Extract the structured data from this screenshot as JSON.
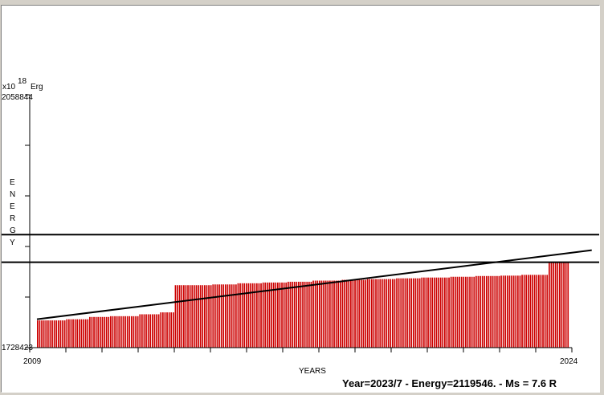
{
  "chart_data": {
    "type": "bar",
    "ylabel": "ENERGY",
    "y_unit": "x10",
    "y_unit_exponent": "18",
    "y_unit_suffix": "Erg",
    "xlabel": "YEARS",
    "x_start_label": "2009",
    "x_end_label": "2024",
    "xlim": [
      2009.0,
      2024.0
    ],
    "ylim": [
      1728423,
      2058844
    ],
    "ymax_label": "2058844",
    "ymin_label": "1728423",
    "bar_color": "#cc0000",
    "line_color": "#000000",
    "steps": [
      [
        2009.2,
        1764000
      ],
      [
        2010.0,
        1765500
      ],
      [
        2010.6,
        1768500
      ],
      [
        2011.2,
        1769500
      ],
      [
        2012.0,
        1772000
      ],
      [
        2012.6,
        1774500
      ],
      [
        2013.0,
        1810000
      ],
      [
        2014.0,
        1811000
      ],
      [
        2014.7,
        1812500
      ],
      [
        2015.4,
        1813500
      ],
      [
        2016.1,
        1814500
      ],
      [
        2016.8,
        1816000
      ],
      [
        2017.6,
        1817000
      ],
      [
        2018.3,
        1818000
      ],
      [
        2019.1,
        1819000
      ],
      [
        2019.8,
        1820000
      ],
      [
        2020.6,
        1821000
      ],
      [
        2021.3,
        1822000
      ],
      [
        2022.0,
        1822500
      ],
      [
        2022.6,
        1823500
      ],
      [
        2023.35,
        1840000
      ],
      [
        2023.92,
        1840000
      ]
    ],
    "trend_line": {
      "start": [
        2009.2,
        1765500
      ],
      "end": [
        2023.92,
        1852000
      ]
    },
    "reference_lines": [
      1876000,
      1840000
    ]
  },
  "status_text": "Year=2023/7 - Energy=2119546. - Ms = 7.6 R"
}
